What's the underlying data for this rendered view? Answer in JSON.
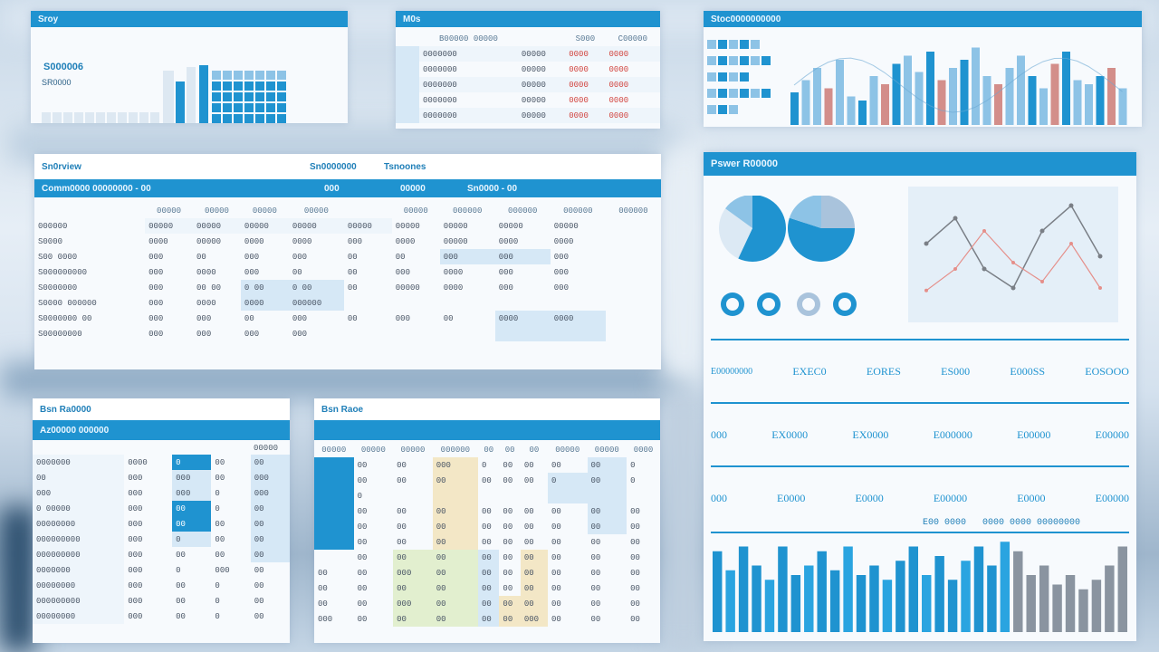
{
  "colors": {
    "accent": "#1f93d0",
    "light_accent": "#8dc3e6",
    "grey": "#8a94a0",
    "red": "#d2453f",
    "yellow": "#f3e7c6",
    "green": "#e2efcf"
  },
  "p1": {
    "title": "Sroy",
    "big": "S000006",
    "sub": "SR0000"
  },
  "p2": {
    "title": "M0s",
    "cols": [
      "B00000 00000",
      "S000",
      "C00000"
    ],
    "rows": [
      [
        "0000000",
        "00000",
        "0000",
        "0000"
      ],
      [
        "0000000",
        "00000",
        "0000",
        "0000"
      ],
      [
        "0000000",
        "00000",
        "0000",
        "0000"
      ],
      [
        "0000000",
        "00000",
        "0000",
        "0000"
      ],
      [
        "0000000",
        "00000",
        "0000",
        "0000"
      ]
    ]
  },
  "p3": {
    "title": "Stoc0000000000"
  },
  "p4": {
    "title": "Sn0rview",
    "tab1": "Sn0000000",
    "tab2": "Tsnoones",
    "bar_left": "Comm0000 00000000 - 00",
    "bar_mid": "000",
    "bar_right_a": "00000",
    "bar_right_b": "Sn0000 - 00",
    "head": [
      "",
      "",
      "00000",
      "00000",
      "00000",
      "00000",
      "",
      "00000",
      "000000",
      "000000",
      "000000",
      "000000"
    ],
    "rows": [
      {
        "label": "000000",
        "v": [
          "00000",
          "00000",
          "00000",
          "00000",
          "00000",
          "00000",
          "00000",
          "00000",
          "00000"
        ]
      },
      {
        "label": "S0000",
        "v": [
          "0000",
          "00000",
          "0000",
          "0000",
          "000",
          "0000",
          "00000",
          "0000",
          "0000"
        ]
      },
      {
        "label": "S00 0000",
        "v": [
          "000",
          "00",
          "000",
          "000",
          "00",
          "00",
          "000",
          "000",
          "000"
        ]
      },
      {
        "label": "S000000000",
        "v": [
          "000",
          "0000",
          "000",
          "00",
          "00",
          "000",
          "0000",
          "000",
          "000"
        ]
      },
      {
        "label": "S0000000",
        "v": [
          "000",
          "00 00",
          "0 00",
          "0 00",
          "00",
          "00000",
          "0000",
          "000",
          "000"
        ]
      },
      {
        "label": "S0000 000000",
        "v": [
          "000",
          "0000",
          "0000",
          "000000",
          "",
          "",
          "",
          "",
          ""
        ]
      },
      {
        "label": "S0000000 00",
        "v": [
          "000",
          "000",
          "00",
          "000",
          "00",
          "000",
          "00",
          "0000",
          "0000"
        ]
      },
      {
        "label": "S00000000",
        "v": [
          "000",
          "000",
          "000",
          "000",
          "",
          "",
          "",
          "",
          ""
        ]
      }
    ]
  },
  "p5": {
    "title": "Pswer R00000",
    "kpis": [
      [
        "E00000000",
        "EXEC0",
        "EORES",
        "ES000",
        "E000SS",
        "EOSOOO"
      ],
      [
        "000",
        "EX0000",
        "EX0000",
        "E000000",
        "E00000",
        "E00000"
      ],
      [
        "000",
        "E0000",
        "E0000",
        "E00000",
        "E0000",
        "E00000"
      ]
    ],
    "bar_caption": "E00 0000   0000 0000 00000000",
    "pies": [
      {
        "a": 0.28,
        "b": 0.15
      },
      {
        "a": 0.55,
        "b": 0.2
      }
    ],
    "line": {
      "s1": [
        0.55,
        0.75,
        0.35,
        0.2,
        0.65,
        0.85,
        0.45
      ],
      "s2": [
        0.18,
        0.35,
        0.65,
        0.4,
        0.25,
        0.55,
        0.2
      ]
    },
    "bars": [
      0.85,
      0.65,
      0.9,
      0.7,
      0.55,
      0.9,
      0.6,
      0.7,
      0.85,
      0.65,
      0.9,
      0.6,
      0.7,
      0.55,
      0.75,
      0.9,
      0.6,
      0.8,
      0.55,
      0.75,
      0.9,
      0.7,
      0.95,
      0.85,
      0.6,
      0.7,
      0.5,
      0.6,
      0.45,
      0.55,
      0.7,
      0.9
    ]
  },
  "p6": {
    "title": "Bsn Ra0000",
    "bar": "Az00000 000000",
    "col_head": "00000",
    "rows": [
      [
        "0000000",
        "0000",
        "0",
        "00",
        "00"
      ],
      [
        "00",
        "000",
        "000",
        "00",
        "000"
      ],
      [
        "000",
        "000",
        "000",
        "0",
        "000"
      ],
      [
        "0 00000",
        "000",
        "00",
        "0",
        "00"
      ],
      [
        "00000000",
        "000",
        "00",
        "00",
        "00"
      ],
      [
        "000000000",
        "000",
        "0",
        "00",
        "00"
      ],
      [
        "000000000",
        "000",
        "00",
        "00",
        "00"
      ],
      [
        "0000000",
        "000",
        "0",
        "000",
        "00"
      ],
      [
        "00000000",
        "000",
        "00",
        "0",
        "00"
      ],
      [
        "000000000",
        "000",
        "00",
        "0",
        "00"
      ],
      [
        "00000000",
        "000",
        "00",
        "0",
        "00"
      ]
    ]
  },
  "p7": {
    "title": "Bsn Raoe",
    "head": [
      "00000",
      "00000",
      "00000",
      "000000",
      "00",
      "00",
      "00",
      "00000",
      "00000",
      "0000"
    ],
    "rows": [
      [
        "",
        "00",
        "00",
        "000",
        "0",
        "00",
        "00",
        "00",
        "00",
        "0"
      ],
      [
        "",
        "00",
        "00",
        "00",
        "00",
        "00",
        "00",
        "0",
        "00",
        "0"
      ],
      [
        "",
        "0",
        "",
        "",
        "",
        "",
        "",
        "",
        "",
        ""
      ],
      [
        "",
        "00",
        "00",
        "00",
        "00",
        "00",
        "00",
        "00",
        "00",
        "00"
      ],
      [
        "",
        "00",
        "00",
        "00",
        "00",
        "00",
        "00",
        "00",
        "00",
        "00"
      ],
      [
        "",
        "00",
        "00",
        "00",
        "00",
        "00",
        "00",
        "00",
        "00",
        "00"
      ],
      [
        "",
        "00",
        "00",
        "00",
        "00",
        "00",
        "00",
        "00",
        "00",
        "00"
      ],
      [
        "00",
        "00",
        "000",
        "00",
        "00",
        "00",
        "00",
        "00",
        "00",
        "00"
      ],
      [
        "00",
        "00",
        "00",
        "00",
        "00",
        "00",
        "00",
        "00",
        "00",
        "00"
      ],
      [
        "00",
        "00",
        "000",
        "00",
        "00",
        "00",
        "00",
        "00",
        "00",
        "00"
      ],
      [
        "000",
        "00",
        "00",
        "00",
        "00",
        "00",
        "000",
        "00",
        "00",
        "00"
      ]
    ]
  }
}
